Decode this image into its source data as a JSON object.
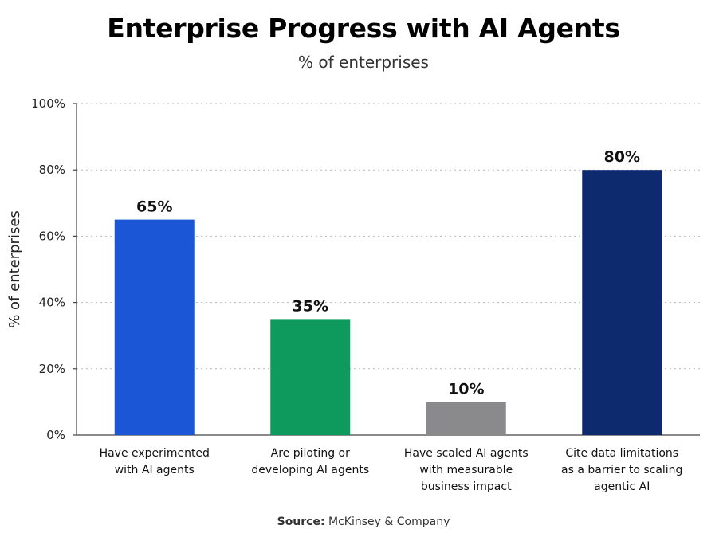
{
  "chart_data": {
    "type": "bar",
    "title": "Enterprise Progress with AI Agents",
    "subtitle": "% of enterprises",
    "ylabel": "% of enterprises",
    "xlabel": "",
    "ylim": [
      0,
      100
    ],
    "yticks": [
      0,
      20,
      40,
      60,
      80,
      100
    ],
    "ytick_labels": [
      "0%",
      "20%",
      "40%",
      "60%",
      "80%",
      "100%"
    ],
    "grid": true,
    "categories": [
      [
        "Have experimented",
        "with AI agents"
      ],
      [
        "Are piloting or",
        "developing AI agents"
      ],
      [
        "Have scaled AI agents",
        "with measurable",
        "business impact"
      ],
      [
        "Cite data limitations",
        "as a barrier to scaling",
        "agentic AI"
      ]
    ],
    "values": [
      65,
      35,
      10,
      80
    ],
    "data_labels": [
      "65%",
      "35%",
      "10%",
      "80%"
    ],
    "colors": [
      "#1a56d6",
      "#0e9a5c",
      "#8a8a8c",
      "#0d2a6e"
    ]
  },
  "source": {
    "label": "Source:",
    "text": "McKinsey & Company"
  }
}
